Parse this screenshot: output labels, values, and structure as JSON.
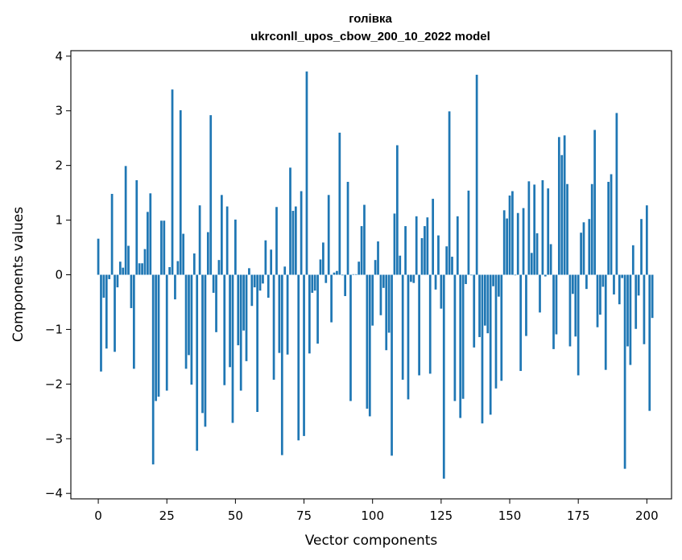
{
  "chart_data": {
    "type": "bar",
    "title_line1": "голівка",
    "title_line2": "ukrconll_upos_cbow_200_10_2022 model",
    "xlabel": "Vector components",
    "ylabel": "Components values",
    "xlim": [
      -10,
      209
    ],
    "ylim": [
      -4.1,
      4.1
    ],
    "xticks": [
      0,
      25,
      50,
      75,
      100,
      125,
      150,
      175,
      200
    ],
    "yticks": [
      -4,
      -3,
      -2,
      -1,
      0,
      1,
      2,
      3,
      4
    ],
    "grid": false,
    "color": "#1f77b4",
    "values": [
      0.66,
      -1.77,
      -0.42,
      -1.35,
      -0.08,
      1.48,
      -1.41,
      -0.23,
      0.24,
      0.13,
      1.99,
      0.53,
      -0.61,
      -1.72,
      1.73,
      0.21,
      0.21,
      0.47,
      1.15,
      1.49,
      -3.47,
      -2.31,
      -2.23,
      0.99,
      0.99,
      -2.12,
      0.14,
      3.39,
      -0.45,
      0.25,
      3.01,
      0.75,
      -1.72,
      -1.47,
      -2.01,
      0.39,
      -3.22,
      1.27,
      -2.53,
      -2.78,
      0.78,
      2.92,
      -0.33,
      -1.05,
      0.27,
      1.46,
      -2.02,
      1.25,
      -1.69,
      -2.71,
      1.01,
      -1.29,
      -2.12,
      -1.02,
      -1.58,
      0.12,
      -0.57,
      -0.23,
      -2.51,
      -0.29,
      -0.16,
      0.63,
      -0.42,
      0.46,
      -1.92,
      1.24,
      -1.43,
      -3.3,
      0.15,
      -1.46,
      1.96,
      1.17,
      1.25,
      -3.03,
      1.53,
      -2.95,
      3.72,
      -1.44,
      -0.33,
      -0.29,
      -1.26,
      0.28,
      0.59,
      -0.15,
      1.46,
      -0.87,
      0.04,
      0.07,
      2.6,
      -0.01,
      -0.39,
      1.7,
      -2.31,
      0.01,
      0.01,
      0.24,
      0.89,
      1.28,
      -2.45,
      -2.59,
      -0.93,
      0.27,
      0.61,
      -0.74,
      -0.24,
      -1.38,
      -1.06,
      -3.31,
      1.12,
      2.37,
      0.35,
      -1.92,
      0.89,
      -2.28,
      -0.13,
      -0.15,
      1.07,
      -1.84,
      0.67,
      0.89,
      1.05,
      -1.81,
      1.39,
      -0.27,
      0.72,
      -0.62,
      -3.73,
      0.52,
      2.99,
      0.33,
      -2.31,
      1.07,
      -2.62,
      -2.27,
      -0.17,
      1.54,
      -0.01,
      -1.33,
      3.66,
      -1.14,
      -2.72,
      -0.93,
      -1.07,
      -2.56,
      -0.21,
      -2.08,
      -0.4,
      -1.94,
      1.18,
      1.03,
      1.45,
      1.53,
      -0.01,
      1.13,
      -1.76,
      1.22,
      -1.12,
      1.71,
      0.4,
      1.65,
      0.76,
      -0.69,
      1.73,
      -0.03,
      1.58,
      0.56,
      -1.36,
      -1.09,
      2.52,
      2.19,
      2.55,
      1.66,
      -1.31,
      -0.35,
      -1.13,
      -1.84,
      0.77,
      0.96,
      -0.26,
      1.02,
      1.66,
      2.65,
      -0.96,
      -0.73,
      -0.22,
      -1.74,
      1.7,
      1.84,
      -0.36,
      2.96,
      -0.54,
      -0.06,
      -3.55,
      -1.31,
      -1.65,
      0.54,
      -0.99,
      -0.38,
      1.02,
      -1.27,
      1.27,
      -2.49,
      -0.79
    ]
  }
}
